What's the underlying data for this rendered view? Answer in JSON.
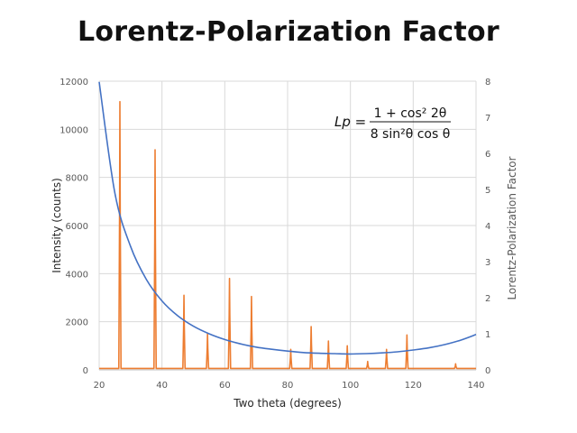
{
  "title": "Lorentz-Polarization Factor",
  "formula": {
    "lhs": "Lp =",
    "numerator": "1 + cos² 2θ",
    "denominator": "8 sin²θ cos θ"
  },
  "chart_data": {
    "type": "line",
    "title": "Lorentz-Polarization Factor",
    "xlabel": "Two theta (degrees)",
    "ylabel": "Intensity (counts)",
    "y2label": "Lorentz-Polarization Factor",
    "xlim": [
      20,
      140
    ],
    "ylim": [
      0,
      12000
    ],
    "y2lim": [
      0,
      8
    ],
    "xticks": [
      20,
      40,
      60,
      80,
      100,
      120,
      140
    ],
    "yticks": [
      0,
      2000,
      4000,
      6000,
      8000,
      10000,
      12000
    ],
    "y2ticks": [
      0,
      1,
      2,
      3,
      4,
      5,
      6,
      7,
      8
    ],
    "grid": true,
    "series": [
      {
        "name": "Intensity (counts)",
        "axis": "left",
        "color": "#ED7D31",
        "baseline": 60,
        "peaks": [
          {
            "x": 26.6,
            "y": 11150
          },
          {
            "x": 37.8,
            "y": 9150
          },
          {
            "x": 47.0,
            "y": 3100
          },
          {
            "x": 54.5,
            "y": 1500
          },
          {
            "x": 61.5,
            "y": 3800
          },
          {
            "x": 68.5,
            "y": 3050
          },
          {
            "x": 81.0,
            "y": 850
          },
          {
            "x": 87.5,
            "y": 1800
          },
          {
            "x": 93.0,
            "y": 1200
          },
          {
            "x": 99.0,
            "y": 1000
          },
          {
            "x": 105.5,
            "y": 350
          },
          {
            "x": 111.5,
            "y": 850
          },
          {
            "x": 118.0,
            "y": 1450
          },
          {
            "x": 133.5,
            "y": 250
          }
        ]
      },
      {
        "name": "Lorentz-Polarization Factor",
        "axis": "right",
        "color": "#4472C4",
        "function": "(1 + cos^2(2θ)) / (8 sin^2θ cosθ)",
        "x": [
          20,
          25,
          30,
          35,
          40,
          45,
          50,
          55,
          60,
          65,
          70,
          75,
          80,
          85,
          90,
          95,
          100,
          105,
          110,
          115,
          120,
          125,
          130,
          135,
          140
        ],
        "y": [
          7.98,
          4.9,
          3.42,
          2.51,
          1.91,
          1.5,
          1.21,
          1.0,
          0.84,
          0.72,
          0.63,
          0.57,
          0.52,
          0.48,
          0.46,
          0.45,
          0.44,
          0.45,
          0.47,
          0.5,
          0.55,
          0.61,
          0.7,
          0.82,
          0.98
        ]
      }
    ]
  }
}
